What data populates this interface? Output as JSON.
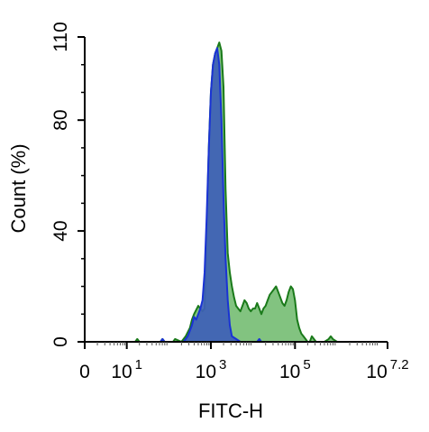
{
  "chart_data": {
    "type": "area",
    "title": "",
    "xlabel": "FITC-H",
    "ylabel": "Count  (%)",
    "x_scale": "log",
    "xlim": [
      0,
      7.2
    ],
    "ylim": [
      0,
      110
    ],
    "grid": false,
    "y_ticks": [
      {
        "value": 0,
        "label": "0"
      },
      {
        "value": 40,
        "label": "40"
      },
      {
        "value": 80,
        "label": "80"
      },
      {
        "value": 110,
        "label": "110"
      }
    ],
    "x_ticks": [
      {
        "value": 0,
        "base": "0",
        "exp": ""
      },
      {
        "value": 1,
        "base": "10",
        "exp": "1"
      },
      {
        "value": 3,
        "base": "10",
        "exp": "3"
      },
      {
        "value": 5,
        "base": "10",
        "exp": "5"
      },
      {
        "value": 7.2,
        "base": "10",
        "exp": "7.2"
      }
    ],
    "series": [
      {
        "fill": "#6cb86a",
        "stroke": "#1a7a1a",
        "x": [
          1.2,
          1.25,
          1.3,
          1.8,
          1.85,
          1.9,
          2.1,
          2.15,
          2.3,
          2.4,
          2.5,
          2.55,
          2.6,
          2.7,
          2.75,
          2.8,
          2.85,
          2.9,
          2.95,
          3.0,
          3.05,
          3.1,
          3.15,
          3.2,
          3.25,
          3.3,
          3.35,
          3.4,
          3.45,
          3.5,
          3.55,
          3.6,
          3.65,
          3.7,
          3.75,
          3.8,
          3.85,
          3.9,
          3.95,
          4.0,
          4.05,
          4.1,
          4.15,
          4.2,
          4.25,
          4.3,
          4.35,
          4.4,
          4.45,
          4.5,
          4.55,
          4.6,
          4.65,
          4.7,
          4.75,
          4.8,
          4.85,
          4.9,
          4.95,
          5.0,
          5.05,
          5.1,
          5.15,
          5.2,
          5.25,
          5.3,
          5.35,
          5.4,
          5.45,
          5.5,
          5.6,
          5.7,
          5.8,
          5.85,
          5.9,
          6.0
        ],
        "y": [
          0,
          1,
          0,
          0,
          1,
          0,
          0,
          1,
          0,
          2,
          5,
          8,
          10,
          13,
          12,
          11,
          12,
          40,
          70,
          90,
          100,
          104,
          106,
          108,
          105,
          92,
          55,
          32,
          25,
          20,
          16,
          13,
          12,
          11,
          13,
          15,
          14,
          12,
          11,
          12,
          12,
          14,
          12,
          10,
          12,
          13,
          15,
          17,
          18,
          19,
          20,
          18,
          16,
          14,
          13,
          15,
          18,
          20,
          19,
          15,
          8,
          5,
          3,
          2,
          1,
          0,
          0,
          2,
          1,
          0,
          0,
          0,
          1,
          2,
          1,
          0
        ]
      },
      {
        "fill": "#3e5fb7",
        "stroke": "#1a33d4",
        "x": [
          1.8,
          1.85,
          1.9,
          2.35,
          2.4,
          2.45,
          2.5,
          2.55,
          2.6,
          2.65,
          2.7,
          2.75,
          2.8,
          2.85,
          2.9,
          2.95,
          3.0,
          3.05,
          3.1,
          3.15,
          3.2,
          3.25,
          3.3,
          3.35,
          3.4,
          3.45,
          3.5,
          3.6,
          3.7,
          4.1,
          4.15,
          4.2
        ],
        "y": [
          0,
          1,
          0,
          0,
          1,
          2,
          4,
          6,
          9,
          8,
          10,
          12,
          15,
          25,
          45,
          70,
          90,
          100,
          104,
          106,
          100,
          80,
          52,
          30,
          15,
          6,
          2,
          1,
          0,
          0,
          1,
          0
        ]
      }
    ]
  }
}
